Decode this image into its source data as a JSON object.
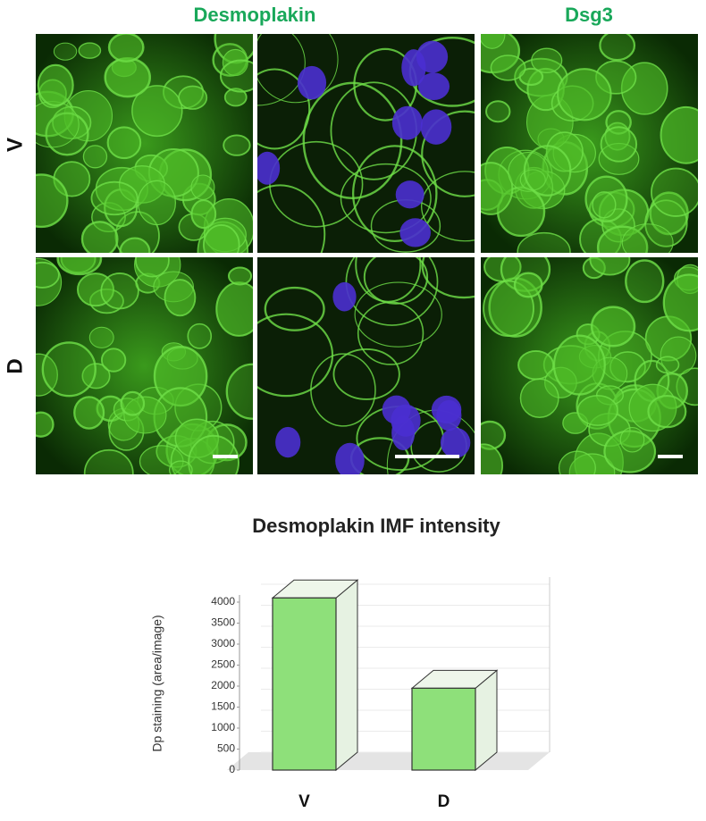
{
  "figure": {
    "column_titles": [
      "Desmoplakin",
      "Dsg3"
    ],
    "row_labels": [
      "V",
      "D"
    ]
  },
  "chart_data": {
    "type": "bar3d",
    "title": "Desmoplakin IMF intensity",
    "y_label": "Dp staining (area/image)",
    "categories": [
      "V",
      "D"
    ],
    "values": [
      4100,
      1950
    ],
    "color": "#8ee07a",
    "ylim": [
      0,
      4000
    ],
    "yticks": [
      0,
      500,
      1000,
      1500,
      2000,
      2500,
      3000,
      3500,
      4000
    ],
    "grid": true
  }
}
